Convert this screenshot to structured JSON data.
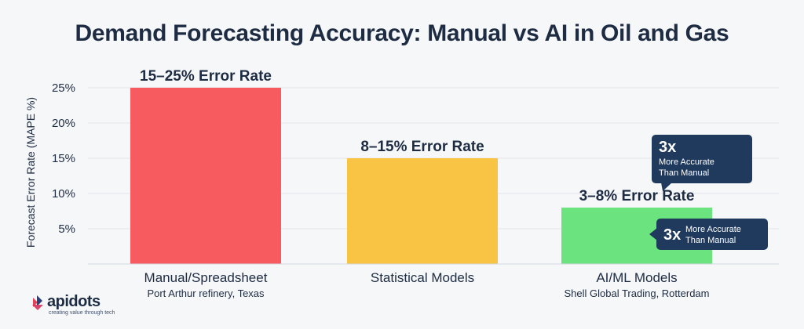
{
  "chart_data": {
    "type": "bar",
    "title": "Demand Forecasting Accuracy: Manual vs AI in Oil and Gas",
    "ylabel": "Forecast Error Rate (MAPE %)",
    "xlabel": "",
    "ylim": [
      0,
      25
    ],
    "yticks": [
      5,
      10,
      15,
      20,
      25
    ],
    "ytick_labels": [
      "5%",
      "10%",
      "15%",
      "20%",
      "25%"
    ],
    "grid": true,
    "categories": [
      "Manual/Spreadsheet",
      "Statistical Models",
      "AI/ML Models"
    ],
    "subcategories": [
      "Port Arthur refinery, Texas",
      "",
      "Shell Global Trading, Rotterdam"
    ],
    "values": [
      25,
      15,
      8
    ],
    "data_labels": [
      "15–25% Error Rate",
      "8–15% Error Rate",
      "3–8% Error Rate"
    ],
    "colors": [
      "#f75b60",
      "#f9c343",
      "#6be37f"
    ],
    "annotations": [
      {
        "big": "3x",
        "text_line1": "More Accurate",
        "text_line2": "Than Manual"
      },
      {
        "big": "3x",
        "text_line1": "More Accurate",
        "text_line2": "Than Manual"
      }
    ]
  },
  "logo": {
    "word": "apidots",
    "tagline": "creating value through tech"
  },
  "colors": {
    "text": "#1e2c43",
    "grid": "#e1e4e9",
    "callout": "#1f3a5c",
    "background": "#f6f7f9"
  }
}
